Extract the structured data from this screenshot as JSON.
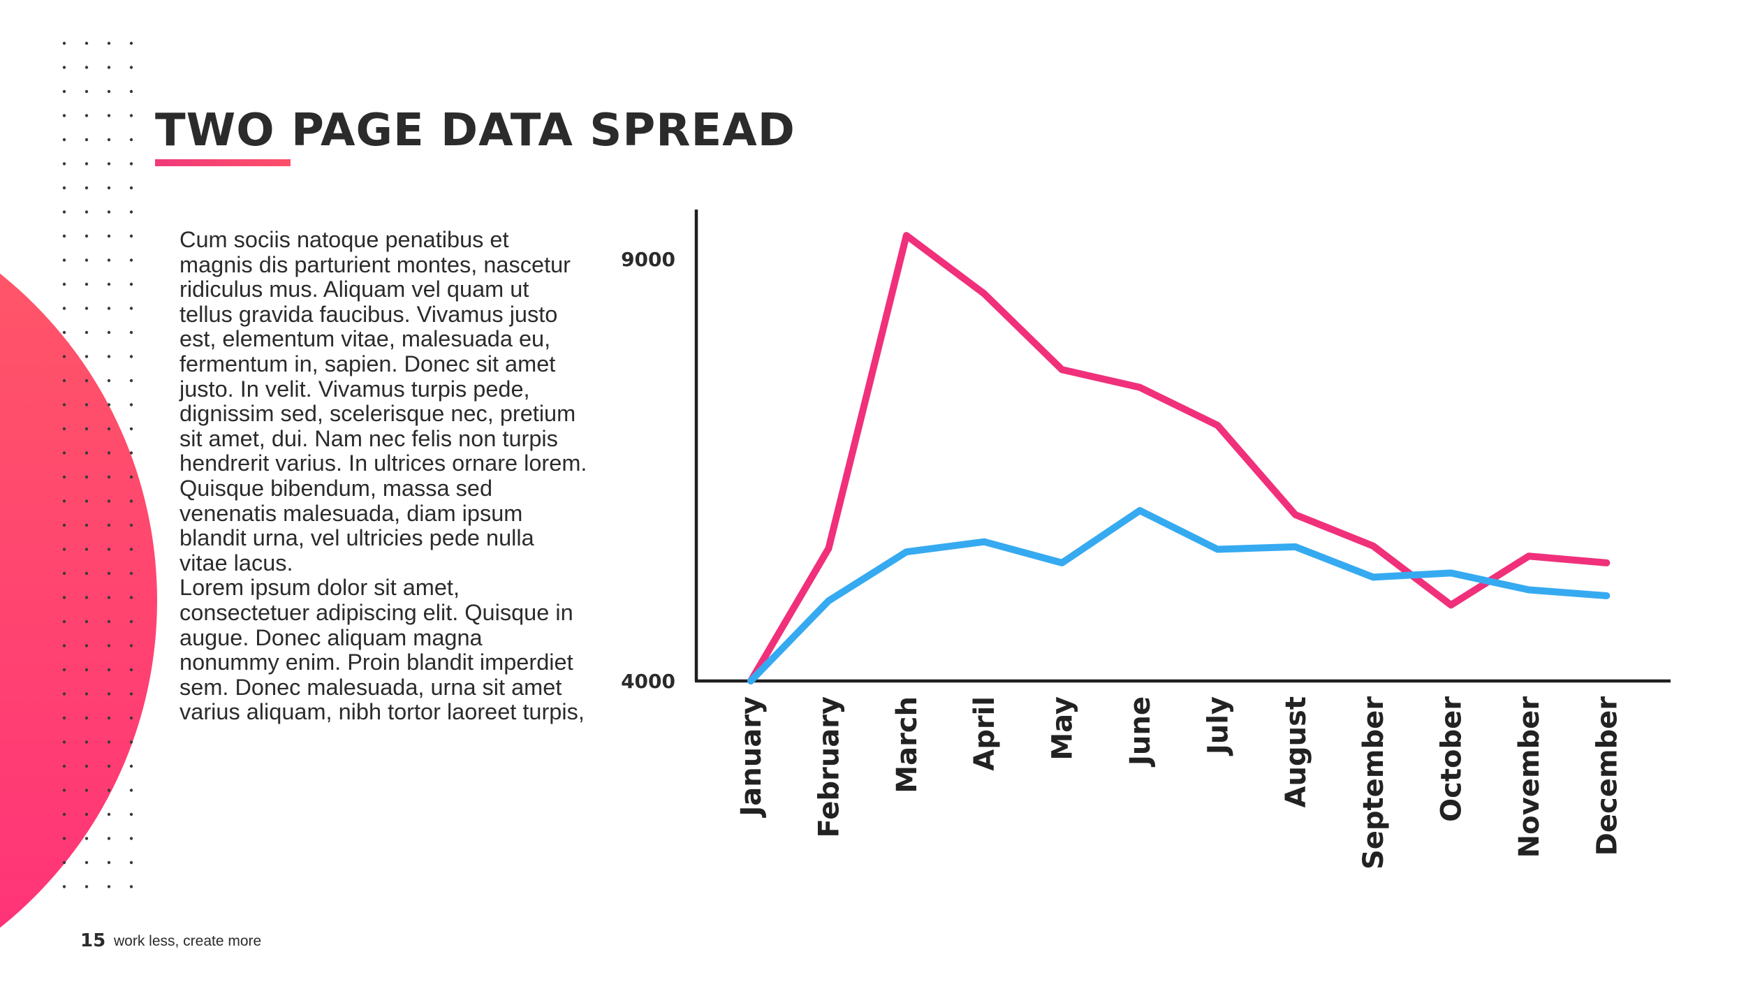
{
  "title": "TWO PAGE DATA SPREAD",
  "body_paragraphs": [
    "Cum sociis natoque penatibus et magnis dis parturient montes, nascetur ridiculus mus. Aliquam vel quam ut tellus gravida faucibus. Vivamus justo est, elementum vitae, malesuada eu, fermentum in, sapien. Donec sit amet justo. In velit. Vivamus turpis pede, dignissim sed, scelerisque nec, pretium sit amet, dui. Nam nec felis non turpis hendrerit varius. In ultrices ornare lorem. Quisque bibendum, massa sed venenatis malesuada, diam ipsum blandit urna, vel ultricies pede nulla vitae lacus.",
    "Lorem ipsum dolor sit amet, consectetuer adipiscing elit. Quisque in augue. Donec aliquam magna nonummy enim. Proin blandit imperdiet sem. Donec malesuada, urna sit amet varius aliquam, nibh tortor laoreet turpis,"
  ],
  "footer": {
    "page_number": "15",
    "tagline": "work less, create more"
  },
  "colors": {
    "accent_pink": "#f0307a",
    "accent_blue": "#36aaf0",
    "text": "#2b2b2b"
  },
  "chart_data": {
    "type": "line",
    "title": "",
    "xlabel": "",
    "ylabel": "",
    "categories": [
      "January",
      "February",
      "March",
      "April",
      "May",
      "June",
      "July",
      "August",
      "September",
      "October",
      "November",
      "December"
    ],
    "y_ticks": [
      "9000",
      "4000"
    ],
    "ylim": [
      4000,
      9000
    ],
    "grid": false,
    "legend": "none",
    "series": [
      {
        "color": "#f0307a",
        "values": [
          4000,
          5570,
          9280,
          8590,
          7690,
          7480,
          7030,
          5970,
          5600,
          4900,
          5480,
          5400
        ]
      },
      {
        "color": "#36aaf0",
        "values": [
          4000,
          4950,
          5530,
          5650,
          5400,
          6020,
          5560,
          5590,
          5230,
          5280,
          5080,
          5010
        ]
      }
    ]
  }
}
